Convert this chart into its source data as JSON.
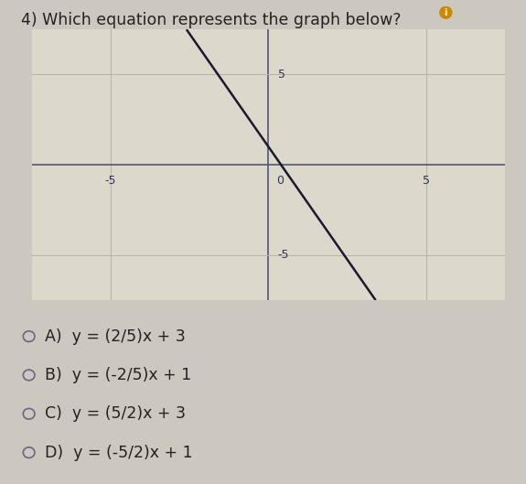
{
  "title": "4) Which equation represents the graph below?",
  "title_fontsize": 12.5,
  "title_color": "#222222",
  "bg_color": "#cdc8bf",
  "graph_bg_color": "#ddd8cc",
  "grid_color": "#b8b4a8",
  "axis_color": "#555577",
  "line_color": "#1a1a2e",
  "line_width": 1.8,
  "slope": -2.5,
  "intercept": 1,
  "x_range": [
    -7.5,
    7.5
  ],
  "y_range": [
    -7.5,
    7.5
  ],
  "x_ticks": [
    -5,
    0,
    5
  ],
  "y_ticks": [
    -5,
    0,
    5
  ],
  "choices": [
    "A)  y = (2/5)x + 3",
    "B)  y = (-2/5)x + 1",
    "C)  y = (5/2)x + 3",
    "D)  y = (-5/2)x + 1"
  ],
  "choice_fontsize": 12.5,
  "circle_color": "#666688",
  "tick_color": "#333355",
  "tick_fontsize": 9
}
